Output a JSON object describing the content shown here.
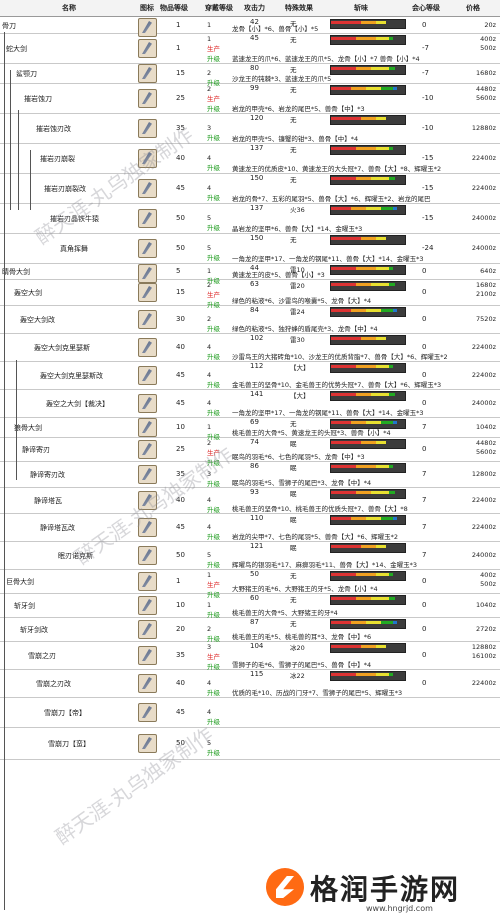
{
  "header": {
    "name": "名称",
    "icon": "图标",
    "level": "物品等级",
    "rarity": "穿戴等级",
    "attack": "攻击力",
    "special": "特殊效果",
    "sharpness": "斩味",
    "affinity": "会心等级",
    "price": "价格"
  },
  "labels": {
    "produce": "生产",
    "upgrade": "升级"
  },
  "rows": [
    {
      "name": "骨刀",
      "level": "1",
      "rarity": "1",
      "mode": "",
      "attack": "42",
      "special": "无",
      "materials": "龙骨【小】*6、兽骨【小】*5",
      "affinity": "0",
      "price": "20z"
    },
    {
      "name": "蛇大剑",
      "level": "1",
      "rarity": "1",
      "mode": "生产/升级",
      "attack": "45",
      "special": "无",
      "materials": "蓝速龙王的爪*6、蓝速龙王的爪*5、龙骨【小】*7 兽骨【小】*4",
      "affinity": "-7",
      "price": "400z 500z"
    },
    {
      "name": "鲨颚刀",
      "level": "15",
      "rarity": "2",
      "mode": "升级",
      "attack": "80",
      "special": "无",
      "materials": "沙龙王的钝棘*3、蓝速龙王的爪*5",
      "affinity": "-7",
      "price": "1680z"
    },
    {
      "name": "摧岩蚀刀",
      "level": "25",
      "rarity": "2",
      "mode": "生产/升级",
      "attack": "99",
      "special": "无",
      "materials": "岩龙的甲壳*6、岩龙的尾巴*5、兽骨【中】*3",
      "affinity": "-10",
      "price": "4480z 5600z"
    },
    {
      "name": "摧岩蚀刃改",
      "level": "35",
      "rarity": "3",
      "mode": "升级",
      "attack": "120",
      "special": "无",
      "materials": "岩龙的甲壳*5、镰蟹的钳*3、兽骨【中】*4",
      "affinity": "-10",
      "price": "12880z"
    },
    {
      "name": "摧岩刃崩裂",
      "level": "40",
      "rarity": "4",
      "mode": "升级",
      "attack": "137",
      "special": "无",
      "materials": "黄速龙王的优质皮*10、黄速龙王的大头冠*7、兽骨【大】*8、辉曜玉*2",
      "affinity": "-15",
      "price": "22400z"
    },
    {
      "name": "摧岩刃崩裂改",
      "level": "45",
      "rarity": "4",
      "mode": "升级",
      "attack": "150",
      "special": "无",
      "materials": "岩龙的骨*7、五彩的尾羽*5、兽骨【大】*6、辉曜玉*2、岩龙的尾巴",
      "affinity": "-15",
      "price": "22400z"
    },
    {
      "name": "摧岩刃晶铁牛猿",
      "level": "50",
      "rarity": "5",
      "mode": "升级",
      "attack": "137",
      "special": "火36",
      "materials": "晶岩龙的坚甲*6、兽骨【大】*14、金曜玉*3",
      "affinity": "-15",
      "price": "24000z"
    },
    {
      "name": "真角挥舞",
      "level": "50",
      "rarity": "5",
      "mode": "升级",
      "attack": "150",
      "special": "无",
      "materials": "一角龙的坚甲*17、一角龙的钢尾*11、兽骨【大】*14、金曜玉*3",
      "affinity": "-24",
      "price": "24000z"
    },
    {
      "name": "晴骨大剑",
      "level": "5",
      "rarity": "1",
      "mode": "升级",
      "attack": "44",
      "special": "雷10",
      "materials": "黄速龙王的皮*5、兽骨【小】*3",
      "affinity": "0",
      "price": "640z"
    },
    {
      "name": "轰空大剑",
      "level": "15",
      "rarity": "2",
      "mode": "生产/升级",
      "attack": "63",
      "special": "雷20",
      "materials": "绿色的粘液*6、沙雷鸟的喉囊*5、龙骨【大】*4",
      "affinity": "0",
      "price": "1680z 2100z"
    },
    {
      "name": "轰空大剑改",
      "level": "30",
      "rarity": "2",
      "mode": "升级",
      "attack": "84",
      "special": "雷24",
      "materials": "绿色的粘液*5、独狩蜂的盾尾壳*3、龙骨【中】*4",
      "affinity": "0",
      "price": "7520z"
    },
    {
      "name": "轰空大剑克里瑟斯",
      "level": "40",
      "rarity": "4",
      "mode": "升级",
      "attack": "102",
      "special": "雷30",
      "materials": "沙雷鸟王的大猪砖角*10、沙龙王的优质背脂*7、兽骨【大】*6、辉曜玉*2",
      "affinity": "0",
      "price": "22400z"
    },
    {
      "name": "轰空大剑克里瑟斯改",
      "level": "45",
      "rarity": "4",
      "mode": "升级",
      "attack": "112",
      "special": "【大】",
      "materials": "金毛兽王的坚骨*10、金毛兽王的优势头冠*7、兽骨【大】*6、辉曜玉*3",
      "affinity": "0",
      "price": "22400z"
    },
    {
      "name": "轰空之大剑【裁决】",
      "level": "45",
      "rarity": "4",
      "mode": "升级",
      "attack": "141",
      "special": "【大】",
      "materials": "一角龙的坚甲*17、一角龙的钢尾*11、兽骨【大】*14、金曜玉*3",
      "affinity": "0",
      "price": "24000z"
    },
    {
      "name": "狼骨大剑",
      "level": "10",
      "rarity": "1",
      "mode": "升级",
      "attack": "69",
      "special": "无",
      "materials": "桃毛兽王的大骨*5、黄速龙王的头冠*3、兽骨【小】*4",
      "affinity": "7",
      "price": "1040z"
    },
    {
      "name": "静谛寄刃",
      "level": "25",
      "rarity": "2",
      "mode": "生产/升级",
      "attack": "74",
      "special": "眠",
      "materials": "眠鸟的羽毛*6、七色的尾羽*5、龙骨【中】*3",
      "affinity": "0",
      "price": "4480z 5600z"
    },
    {
      "name": "静谛寄刃改",
      "level": "35",
      "rarity": "3",
      "mode": "升级",
      "attack": "86",
      "special": "眠",
      "materials": "眠鸟的羽毛*5、雪狮子的尾巴*3、龙骨【中】*4",
      "affinity": "7",
      "price": "12800z"
    },
    {
      "name": "静谛塔瓦",
      "level": "40",
      "rarity": "4",
      "mode": "升级",
      "attack": "93",
      "special": "眠",
      "materials": "桃毛兽王的坚骨*10、桃毛兽王的优质头冠*7、兽骨【大】*8",
      "affinity": "7",
      "price": "22400z"
    },
    {
      "name": "静谛塔瓦改",
      "level": "45",
      "rarity": "4",
      "mode": "升级",
      "attack": "110",
      "special": "眠",
      "materials": "岩龙的尖甲*7、七色的尾羽*5、兽骨【大】*6、辉曜玉*2",
      "affinity": "7",
      "price": "22400z"
    },
    {
      "name": "眠刃诺克斯",
      "level": "50",
      "rarity": "5",
      "mode": "升级",
      "attack": "121",
      "special": "眠",
      "materials": "辉曜鸟的银羽毛*17、麻痹羽毛*11、兽骨【大】*14、金曜玉*3",
      "affinity": "7",
      "price": "24000z"
    },
    {
      "name": "巨骨大剑",
      "level": "1",
      "rarity": "1",
      "mode": "生产/升级",
      "attack": "50",
      "special": "无",
      "materials": "大野猪王的毛*6、大野猪王的牙*5、龙骨【小】*4",
      "affinity": "0",
      "price": "400z 500z"
    },
    {
      "name": "斩牙剑",
      "level": "10",
      "rarity": "1",
      "mode": "升级",
      "attack": "60",
      "special": "无",
      "materials": "桃毛兽王的大骨*5、大野猪王的牙*4",
      "affinity": "0",
      "price": "1040z"
    },
    {
      "name": "斩牙剑改",
      "level": "20",
      "rarity": "2",
      "mode": "升级",
      "attack": "87",
      "special": "无",
      "materials": "桃毛兽王的毛*5、桃毛兽的耳*3、龙骨【中】*6",
      "affinity": "0",
      "price": "2720z"
    },
    {
      "name": "雪崩之刃",
      "level": "35",
      "rarity": "3",
      "mode": "生产/升级",
      "attack": "104",
      "special": "冰20",
      "materials": "雪狮子的毛*6、雪狮子的尾巴*5、兽骨【中】*4",
      "affinity": "0",
      "price": "12880z 16100z"
    },
    {
      "name": "雪崩之刃改",
      "level": "40",
      "rarity": "4",
      "mode": "升级",
      "attack": "115",
      "special": "冰22",
      "materials": "优质的毛*10、历战的门牙*7、雪狮子的尾巴*5、辉曜玉*3",
      "affinity": "0",
      "price": "22400z"
    },
    {
      "name": "雪崩刀【帝】",
      "level": "45",
      "rarity": "4",
      "mode": "升级",
      "attack": "",
      "special": "",
      "materials": "",
      "affinity": "",
      "price": ""
    },
    {
      "name": "雪崩刀【蛮】",
      "level": "50",
      "rarity": "5",
      "mode": "升级",
      "attack": "",
      "special": "",
      "materials": "",
      "affinity": "",
      "price": ""
    }
  ],
  "watermarks": [
    "醉天涯-丸乌独家制作",
    "醉天涯-丸乌独家制作",
    "醉天涯-丸乌独家制作"
  ],
  "logo": {
    "title": "格润手游网",
    "url": "www.hngrjd.com"
  }
}
